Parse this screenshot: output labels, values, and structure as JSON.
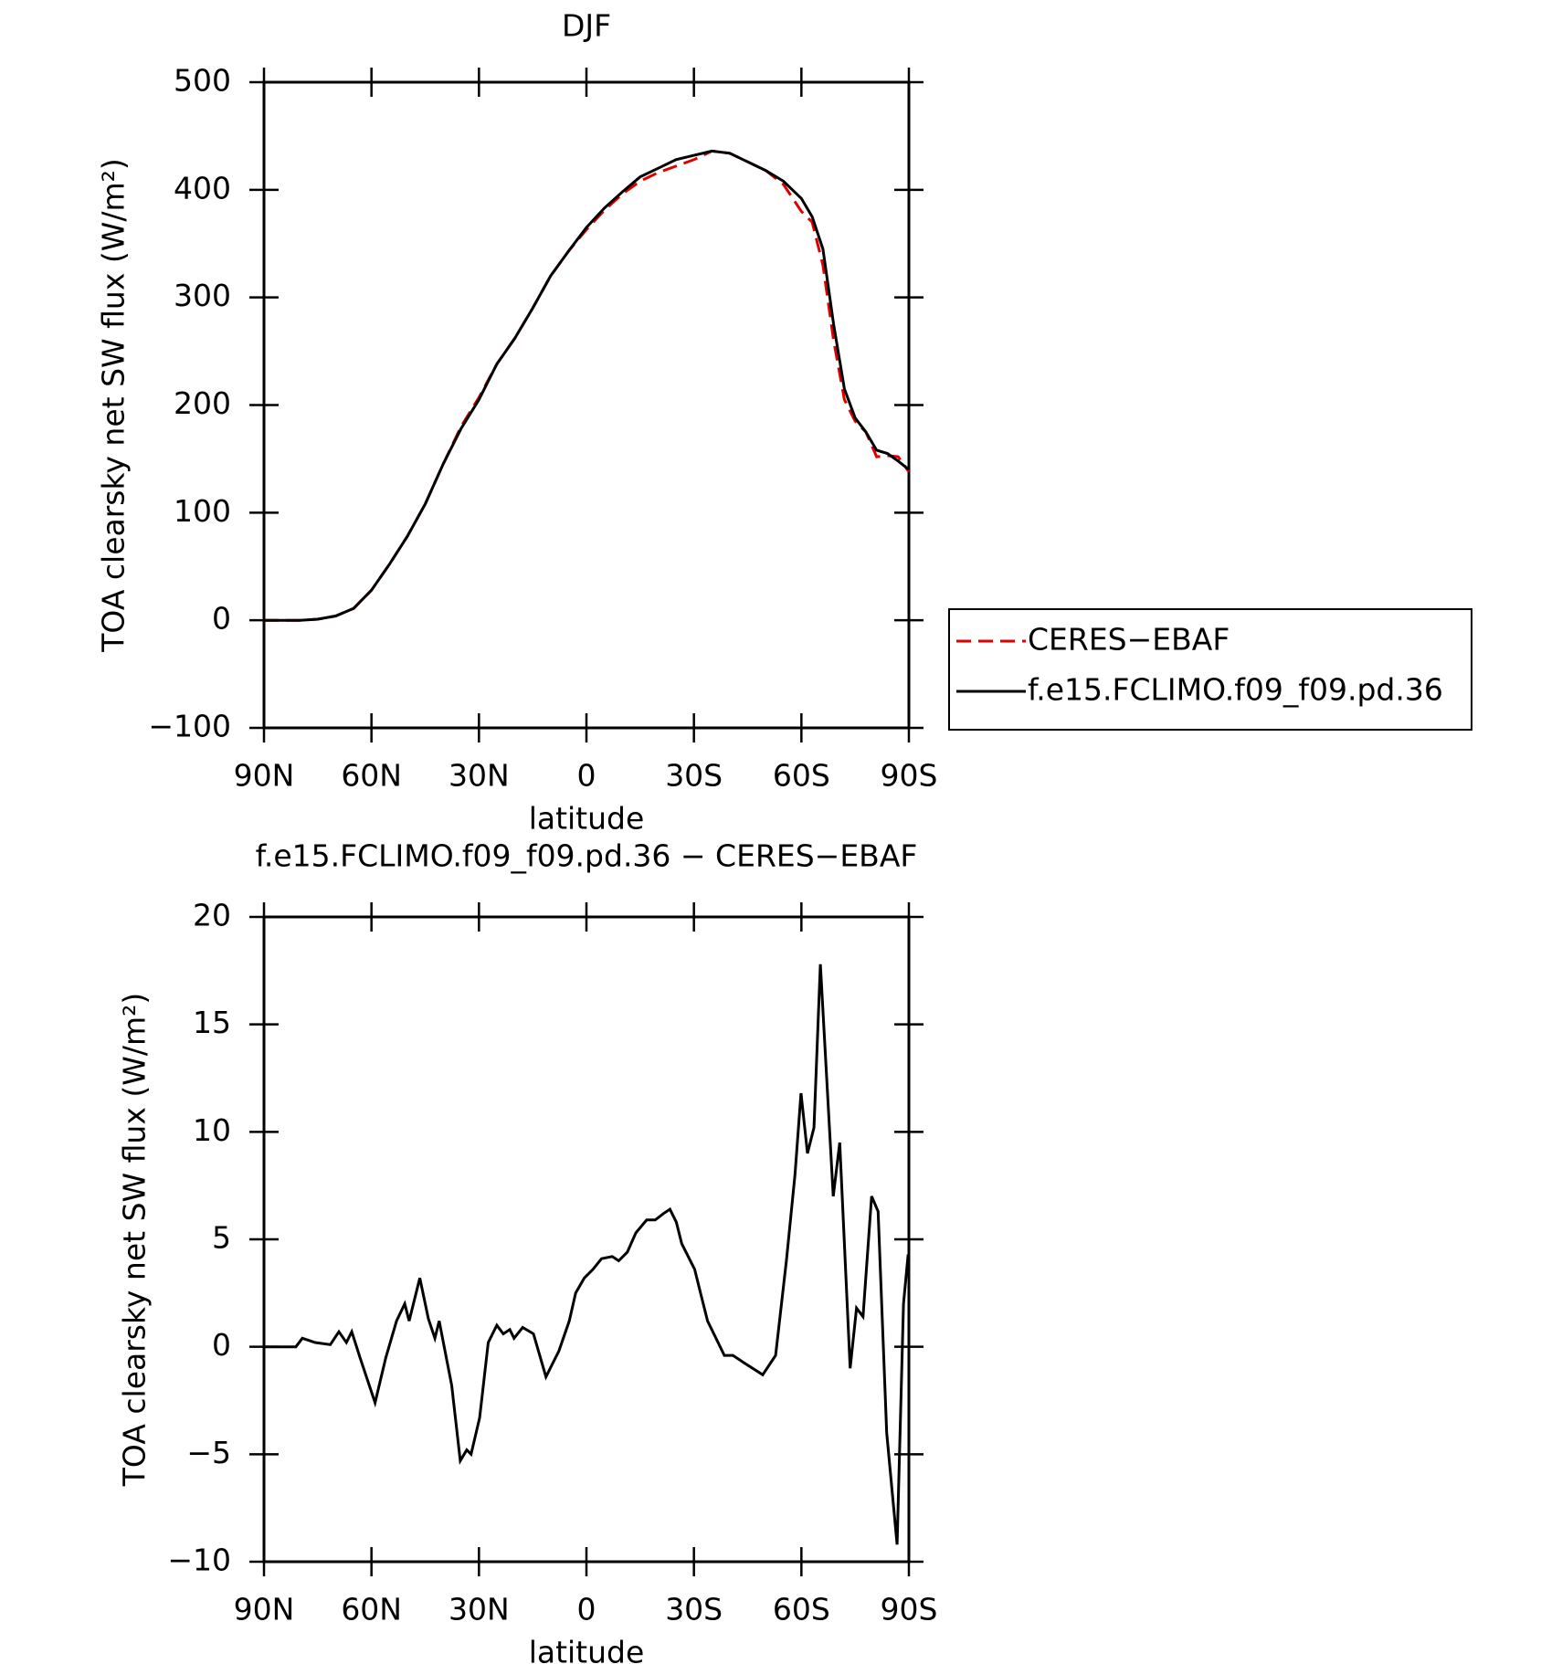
{
  "chart_data": [
    {
      "type": "line",
      "title": "DJF",
      "xlabel": "latitude",
      "ylabel": "TOA clearsky net SW flux (W/m²)",
      "xlim": [
        90,
        -90
      ],
      "ylim": [
        -100,
        500
      ],
      "xticks": [
        {
          "value": 90,
          "label": "90N"
        },
        {
          "value": 60,
          "label": "60N"
        },
        {
          "value": 30,
          "label": "30N"
        },
        0,
        {
          "value": -30,
          "label": "30S"
        },
        {
          "value": -60,
          "label": "60S"
        },
        {
          "value": -90,
          "label": "90S"
        }
      ],
      "yticks": [
        {
          "value": -100,
          "label": "−100"
        },
        0,
        100,
        200,
        300,
        400,
        500
      ],
      "legend": "right",
      "x": [
        90,
        85,
        80,
        75,
        70,
        65,
        60,
        55,
        50,
        45,
        40,
        35,
        30,
        25,
        20,
        15,
        10,
        5,
        0,
        -5,
        -10,
        -15,
        -20,
        -25,
        -30,
        -35,
        -40,
        -45,
        -50,
        -55,
        -60,
        -63,
        -66,
        -69,
        -72,
        -75,
        -78,
        -81,
        -84,
        -87,
        -90
      ],
      "series": [
        {
          "name": "CERES−EBAF",
          "color": "#e00000",
          "linestyle": "dashed",
          "values": [
            0,
            0,
            0,
            1,
            4,
            11,
            28,
            52,
            78,
            108,
            145,
            180,
            207,
            238,
            262,
            290,
            320,
            343,
            363,
            381,
            396,
            408,
            416,
            422,
            428,
            436,
            434,
            426,
            418,
            405,
            380,
            370,
            330,
            260,
            205,
            185,
            175,
            152,
            153,
            152,
            138
          ]
        },
        {
          "name": "f.e15.FCLIMO.f09_f09.pd.36",
          "color": "#000000",
          "linestyle": "solid",
          "values": [
            0,
            0,
            0,
            1,
            4,
            11,
            28,
            52,
            78,
            108,
            145,
            178,
            205,
            238,
            262,
            290,
            320,
            343,
            365,
            383,
            398,
            412,
            420,
            428,
            432,
            436,
            434,
            426,
            418,
            408,
            392,
            375,
            345,
            275,
            215,
            188,
            175,
            158,
            155,
            148,
            140
          ]
        }
      ]
    },
    {
      "type": "line",
      "title": "f.e15.FCLIMO.f09_f09.pd.36 − CERES−EBAF",
      "xlabel": "latitude",
      "ylabel": "TOA clearsky net SW flux (W/m²)",
      "xlim": [
        90,
        -90
      ],
      "ylim": [
        -10,
        20
      ],
      "xticks": [
        {
          "value": 90,
          "label": "90N"
        },
        {
          "value": 60,
          "label": "60N"
        },
        {
          "value": 30,
          "label": "30N"
        },
        0,
        {
          "value": -30,
          "label": "30S"
        },
        {
          "value": -60,
          "label": "60S"
        },
        {
          "value": -90,
          "label": "90S"
        }
      ],
      "yticks": [
        {
          "value": -10,
          "label": "−10"
        },
        {
          "value": -5,
          "label": "−5"
        },
        0,
        5,
        10,
        15,
        20
      ],
      "color": "#000000",
      "x": [
        90,
        81.1,
        79.3,
        75.7,
        71.5,
        69.1,
        67.0,
        65.5,
        63.2,
        59.0,
        56.0,
        53.0,
        50.7,
        49.5,
        46.5,
        44.1,
        42.3,
        41.1,
        37.6,
        35.2,
        33.4,
        32.2,
        29.8,
        27.4,
        25.0,
        23.2,
        21.4,
        20.2,
        17.8,
        14.8,
        11.3,
        9.5,
        7.7,
        4.8,
        3.0,
        0.6,
        -1.8,
        -4.2,
        -7.2,
        -9.0,
        -11.4,
        -13.8,
        -16.8,
        -19.2,
        -21.5,
        -23.3,
        -25.1,
        -26.6,
        -30.2,
        -32.0,
        -33.8,
        -38.5,
        -40.9,
        -44.5,
        -49.2,
        -52.8,
        -55.8,
        -58.2,
        -59.9,
        -61.7,
        -63.5,
        -65.3,
        -68.9,
        -70.7,
        -73.6,
        -75.4,
        -77.2,
        -79.6,
        -81.4,
        -83.8,
        -86.7,
        -88.5,
        -89.8
      ],
      "values": [
        0,
        0,
        0.4,
        0.2,
        0.1,
        0.7,
        0.2,
        0.7,
        -0.5,
        -2.6,
        -0.5,
        1.2,
        2.0,
        1.2,
        3.2,
        1.3,
        0.4,
        1.2,
        -1.8,
        -5.3,
        -4.8,
        -5.0,
        -3.3,
        0.2,
        1.0,
        0.6,
        0.8,
        0.4,
        0.9,
        0.6,
        -1.4,
        -0.8,
        -0.2,
        1.2,
        2.5,
        3.2,
        3.6,
        4.1,
        4.2,
        4.0,
        4.4,
        5.3,
        5.9,
        5.9,
        6.2,
        6.4,
        5.8,
        4.8,
        3.6,
        2.4,
        1.2,
        -0.4,
        -0.4,
        -0.8,
        -1.3,
        -0.4,
        4.0,
        8.0,
        11.8,
        9.0,
        10.2,
        17.8,
        7.0,
        9.5,
        -1.0,
        1.8,
        1.4,
        7.0,
        6.3,
        -4.0,
        -9.2,
        2.0,
        4.3
      ]
    }
  ]
}
